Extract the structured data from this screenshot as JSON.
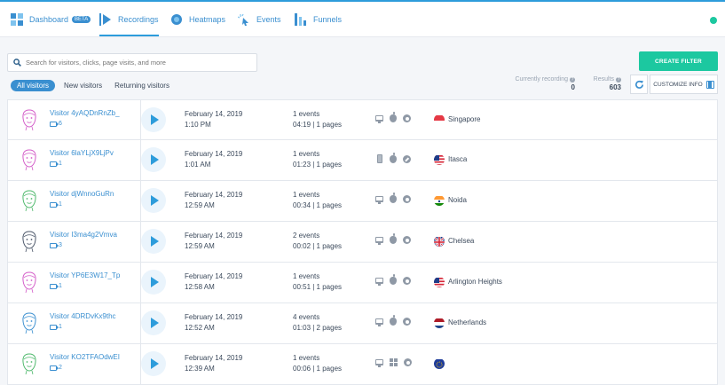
{
  "nav": {
    "items": [
      {
        "label": "Dashboard",
        "badge": "BETA",
        "icon": "dashboard-icon"
      },
      {
        "label": "Recordings",
        "icon": "play-icon",
        "active": true
      },
      {
        "label": "Heatmaps",
        "icon": "heatmap-icon"
      },
      {
        "label": "Events",
        "icon": "cursor-click-icon"
      },
      {
        "label": "Funnels",
        "icon": "funnel-bars-icon"
      }
    ],
    "accent": "#2d9cdb",
    "status_color": "#1cc8a0"
  },
  "search": {
    "placeholder": "Search for visitors, clicks, page visits, and more"
  },
  "create_filter_label": "CREATE FILTER",
  "filter_tabs": [
    {
      "label": "All visitors",
      "active": true
    },
    {
      "label": "New visitors"
    },
    {
      "label": "Returning visitors"
    }
  ],
  "stats": {
    "currently_recording_label": "Currently recording",
    "currently_recording_value": "0",
    "results_label": "Results",
    "results_value": "603"
  },
  "customize_label": "CUSTOMIZE INFO",
  "rows": [
    {
      "visitor": "Visitor 4yAQDnRnZb_",
      "sessions": "6",
      "avatar_color": "#d35bc8",
      "date": "February 14, 2019",
      "time": "1:10 PM",
      "events": "1 events",
      "duration": "04:19 | 1 pages",
      "devices": [
        "desktop-icon",
        "apple-icon",
        "chrome-icon"
      ],
      "flag": "singapore",
      "location": "Singapore"
    },
    {
      "visitor": "Visitor 6laYLjX9LjPv",
      "sessions": "1",
      "avatar_color": "#d35bc8",
      "date": "February 14, 2019",
      "time": "1:01 AM",
      "events": "1 events",
      "duration": "01:23 | 1 pages",
      "devices": [
        "mobile-icon",
        "apple-icon",
        "safari-icon"
      ],
      "flag": "usa",
      "location": "Itasca"
    },
    {
      "visitor": "Visitor djWnnoGuRn",
      "sessions": "1",
      "avatar_color": "#4cb86a",
      "date": "February 14, 2019",
      "time": "12:59 AM",
      "events": "1 events",
      "duration": "00:34 | 1 pages",
      "devices": [
        "desktop-icon",
        "apple-icon",
        "chrome-icon"
      ],
      "flag": "india",
      "location": "Noida"
    },
    {
      "visitor": "Visitor I3ma4g2Vmva",
      "sessions": "3",
      "avatar_color": "#4a5568",
      "date": "February 14, 2019",
      "time": "12:59 AM",
      "events": "2 events",
      "duration": "00:02 | 1 pages",
      "devices": [
        "desktop-icon",
        "apple-icon",
        "chrome-icon"
      ],
      "flag": "uk",
      "location": "Chelsea"
    },
    {
      "visitor": "Visitor YP6E3W17_Tp",
      "sessions": "1",
      "avatar_color": "#d35bc8",
      "date": "February 14, 2019",
      "time": "12:58 AM",
      "events": "1 events",
      "duration": "00:51 | 1 pages",
      "devices": [
        "desktop-icon",
        "apple-icon",
        "chrome-icon"
      ],
      "flag": "usa",
      "location": "Arlington Heights"
    },
    {
      "visitor": "Visitor 4DRDvKx9thc",
      "sessions": "1",
      "avatar_color": "#3a8fd0",
      "date": "February 14, 2019",
      "time": "12:52 AM",
      "events": "4 events",
      "duration": "01:03 | 2 pages",
      "devices": [
        "desktop-icon",
        "apple-icon",
        "chrome-icon"
      ],
      "flag": "netherlands",
      "location": "Netherlands"
    },
    {
      "visitor": "Visitor KO2TFAOdwEI",
      "sessions": "2",
      "avatar_color": "#4cb86a",
      "date": "February 14, 2019",
      "time": "12:39 AM",
      "events": "1 events",
      "duration": "00:06 | 1 pages",
      "devices": [
        "desktop-icon",
        "windows-icon",
        "chrome-icon"
      ],
      "flag": "eu",
      "location": ""
    }
  ]
}
